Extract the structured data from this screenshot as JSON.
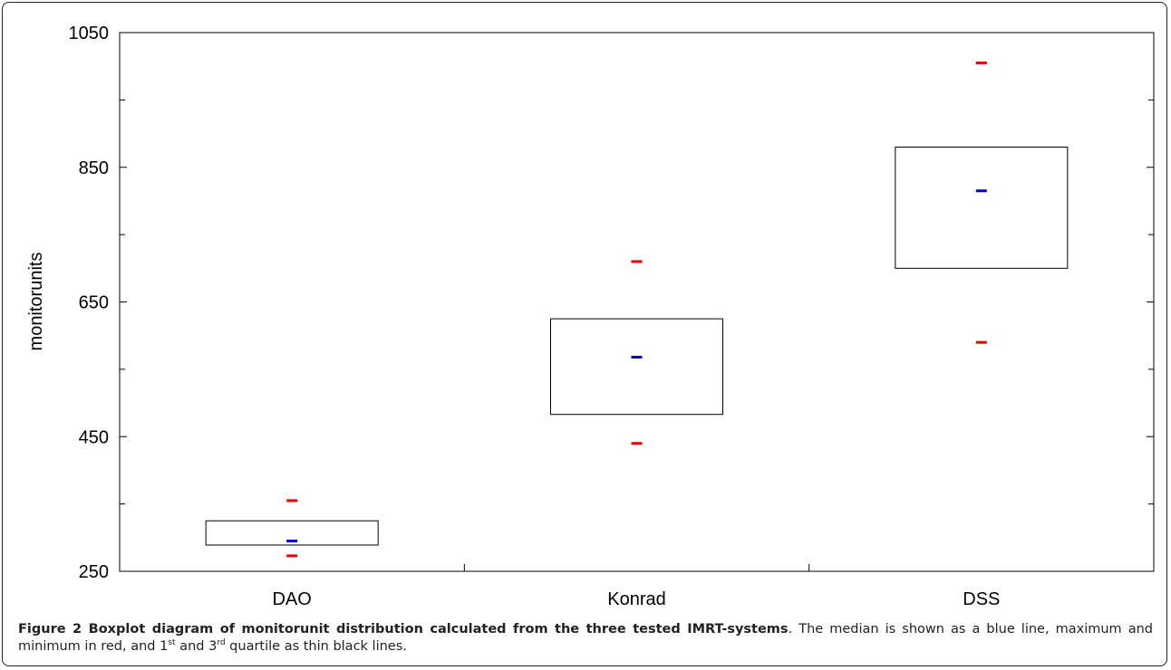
{
  "chart_data": {
    "type": "boxplot",
    "ylabel": "monitorunits",
    "xlabel": "",
    "ylim": [
      250,
      1050
    ],
    "yticks": [
      250,
      450,
      650,
      850,
      1050
    ],
    "yticks_minor": [
      350,
      550,
      750,
      950
    ],
    "categories": [
      "DAO",
      "Konrad",
      "DSS"
    ],
    "boxes": [
      {
        "name": "DAO",
        "min": 273,
        "q1": 289,
        "median": 295,
        "q3": 325,
        "max": 355
      },
      {
        "name": "Konrad",
        "min": 440,
        "q1": 483,
        "median": 568,
        "q3": 625,
        "max": 710
      },
      {
        "name": "DSS",
        "min": 590,
        "q1": 700,
        "median": 815,
        "q3": 880,
        "max": 1005
      }
    ],
    "colors": {
      "median": "#0000dd",
      "extreme": "#ee0000",
      "box": "#000000"
    }
  },
  "caption": {
    "label": "Figure 2",
    "title": "Boxplot diagram of monitorunit distribution calculated from the three tested IMRT-systems",
    "text_1": ". The median is shown as a blue line, maximum and minimum in red, and 1",
    "sup_1": "st",
    "text_2": " and 3",
    "sup_2": "rd",
    "text_3": " quartile as thin black lines."
  }
}
